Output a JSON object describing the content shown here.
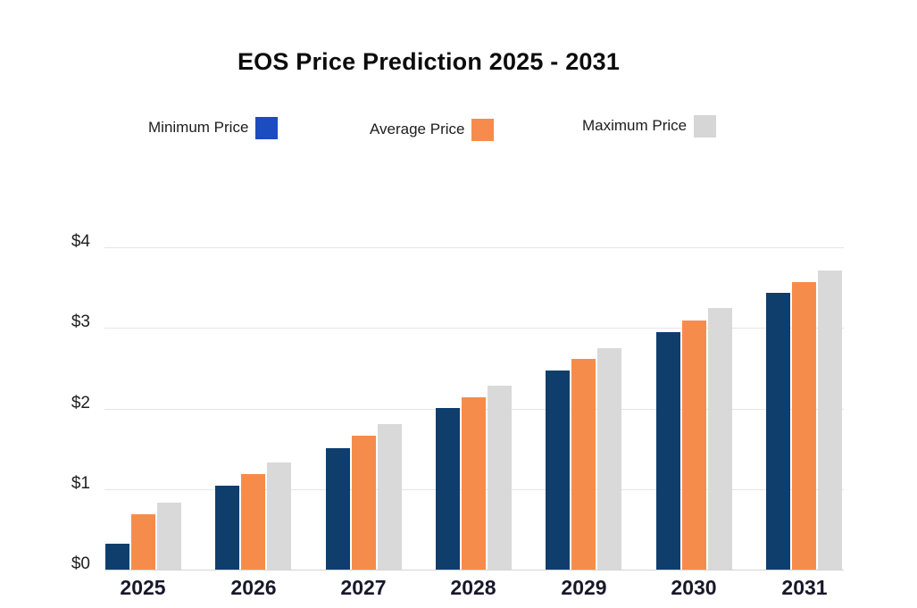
{
  "title": "EOS Price Prediction 2025 - 2031",
  "legend": [
    {
      "label": "Minimum Price",
      "color": "#1b4cc0"
    },
    {
      "label": "Average Price",
      "color": "#f78b4d"
    },
    {
      "label": "Maximum Price",
      "color": "#d6d6d6"
    }
  ],
  "chart_data": {
    "type": "bar",
    "title": "EOS Price Prediction 2025 - 2031",
    "categories": [
      "2025",
      "2026",
      "2027",
      "2028",
      "2029",
      "2030",
      "2031"
    ],
    "series": [
      {
        "name": "Minimum Price",
        "color": "#0f3e6c",
        "values": [
          0.32,
          1.04,
          1.51,
          2.0,
          2.47,
          2.95,
          3.43
        ]
      },
      {
        "name": "Average Price",
        "color": "#f68c4b",
        "values": [
          0.69,
          1.18,
          1.66,
          2.14,
          2.61,
          3.09,
          3.57
        ]
      },
      {
        "name": "Maximum Price",
        "color": "#d9d9d9",
        "values": [
          0.83,
          1.33,
          1.8,
          2.28,
          2.75,
          3.24,
          3.71
        ]
      }
    ],
    "xlabel": "",
    "ylabel": "",
    "y_ticks": [
      "$0",
      "$1",
      "$2",
      "$3",
      "$4"
    ],
    "ylim": [
      0,
      4
    ],
    "grid": true,
    "legend_position": "top"
  }
}
